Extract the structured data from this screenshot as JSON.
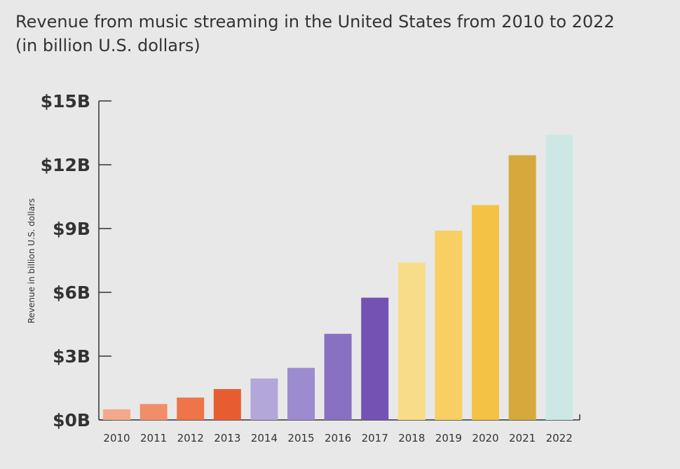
{
  "chart_data": {
    "type": "bar",
    "title": "Revenue from music streaming in the United States from 2010 to 2022",
    "subtitle": "(in billion U.S. dollars)",
    "xlabel": "",
    "ylabel": "Revenue in billion U.S. dollars",
    "categories": [
      "2010",
      "2011",
      "2012",
      "2013",
      "2014",
      "2015",
      "2016",
      "2017",
      "2018",
      "2019",
      "2020",
      "2021",
      "2022"
    ],
    "values": [
      0.5,
      0.75,
      1.05,
      1.45,
      1.95,
      2.45,
      4.05,
      5.75,
      7.4,
      8.9,
      10.1,
      12.45,
      13.4
    ],
    "colors": [
      "#f4a98c",
      "#f08d6a",
      "#ed7549",
      "#e85c32",
      "#b3a6d9",
      "#9d8bd0",
      "#8870c2",
      "#7352b3",
      "#f9dc8a",
      "#f7cf63",
      "#f4c245",
      "#d6a93c",
      "#cde8e4"
    ],
    "ylim": [
      0,
      15
    ],
    "yticks": [
      0,
      3,
      6,
      9,
      12,
      15
    ],
    "ytick_labels": [
      "$0B",
      "$3B",
      "$6B",
      "$9B",
      "$12B",
      "$15B"
    ],
    "grid": false,
    "legend": "none"
  }
}
